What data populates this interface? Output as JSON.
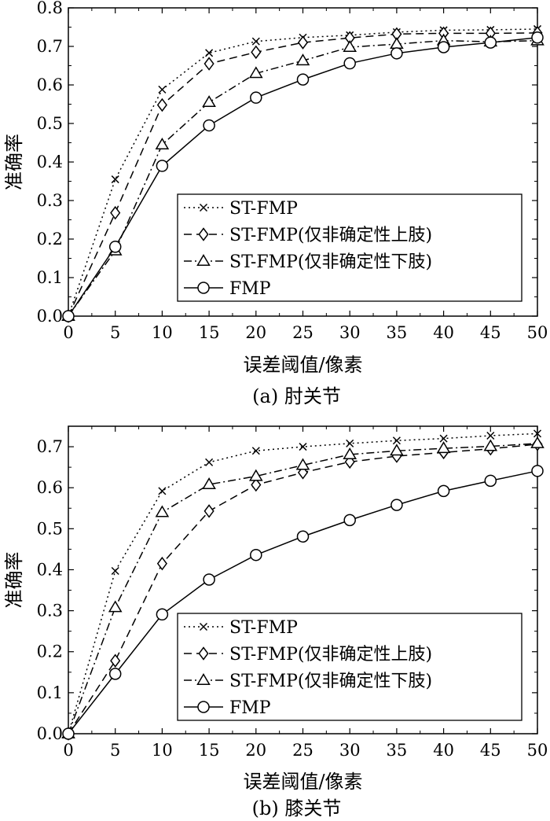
{
  "chart_data": [
    {
      "type": "line",
      "caption": "(a) 肘关节",
      "xlabel": "误差阈值/像素",
      "ylabel": "准确率",
      "xlim": [
        0,
        50
      ],
      "ylim": [
        0,
        0.8
      ],
      "xticks": [
        0,
        5,
        10,
        15,
        20,
        25,
        30,
        35,
        40,
        45,
        50
      ],
      "yticks": [
        0.0,
        0.1,
        0.2,
        0.3,
        0.4,
        0.5,
        0.6,
        0.7,
        0.8
      ],
      "ytick_labels": [
        "0.0",
        "0.1",
        "0.2",
        "0.3",
        "0.4",
        "0.5",
        "0.6",
        "0.7",
        "0.8"
      ],
      "grid": false,
      "legend_position": "bottom-right",
      "x": [
        0,
        5,
        10,
        15,
        20,
        25,
        30,
        35,
        40,
        45,
        50
      ],
      "series": [
        {
          "name": "ST-FMP",
          "marker": "x",
          "line_style": "dotted",
          "values": [
            0.0,
            0.355,
            0.588,
            0.683,
            0.713,
            0.723,
            0.729,
            0.737,
            0.742,
            0.743,
            0.745
          ]
        },
        {
          "name": "ST-FMP(仅非确定性上肢)",
          "marker": "diamond",
          "line_style": "dashed",
          "values": [
            0.0,
            0.268,
            0.548,
            0.655,
            0.685,
            0.71,
            0.722,
            0.732,
            0.734,
            0.734,
            0.735
          ]
        },
        {
          "name": "ST-FMP(仅非确定性下肢)",
          "marker": "triangle",
          "line_style": "dashdot",
          "values": [
            0.0,
            0.17,
            0.445,
            0.555,
            0.63,
            0.663,
            0.698,
            0.706,
            0.715,
            0.712,
            0.715
          ]
        },
        {
          "name": "FMP",
          "marker": "circle",
          "line_style": "solid",
          "values": [
            0.0,
            0.18,
            0.39,
            0.495,
            0.567,
            0.614,
            0.656,
            0.682,
            0.698,
            0.71,
            0.723
          ]
        }
      ]
    },
    {
      "type": "line",
      "caption": "(b) 膝关节",
      "xlabel": "误差阈值/像素",
      "ylabel": "准确率",
      "xlim": [
        0,
        50
      ],
      "ylim": [
        0,
        0.75
      ],
      "xticks": [
        0,
        5,
        10,
        15,
        20,
        25,
        30,
        35,
        40,
        45,
        50
      ],
      "yticks": [
        0.0,
        0.1,
        0.2,
        0.3,
        0.4,
        0.5,
        0.6,
        0.7
      ],
      "ytick_labels": [
        "0.0",
        "0.1",
        "0.2",
        "0.3",
        "0.4",
        "0.5",
        "0.6",
        "0.7"
      ],
      "grid": false,
      "legend_position": "bottom-right",
      "x": [
        0,
        5,
        10,
        15,
        20,
        25,
        30,
        35,
        40,
        45,
        50
      ],
      "series": [
        {
          "name": "ST-FMP",
          "marker": "x",
          "line_style": "dotted",
          "values": [
            0.0,
            0.397,
            0.592,
            0.662,
            0.69,
            0.7,
            0.708,
            0.715,
            0.72,
            0.727,
            0.732
          ]
        },
        {
          "name": "ST-FMP(仅非确定性上肢)",
          "marker": "diamond",
          "line_style": "dashed",
          "values": [
            0.0,
            0.178,
            0.415,
            0.543,
            0.607,
            0.637,
            0.663,
            0.677,
            0.686,
            0.695,
            0.706
          ]
        },
        {
          "name": "ST-FMP(仅非确定性下肢)",
          "marker": "triangle",
          "line_style": "dashdot",
          "values": [
            0.0,
            0.308,
            0.54,
            0.608,
            0.628,
            0.655,
            0.681,
            0.69,
            0.696,
            0.701,
            0.708
          ]
        },
        {
          "name": "FMP",
          "marker": "circle",
          "line_style": "solid",
          "values": [
            0.0,
            0.146,
            0.291,
            0.376,
            0.436,
            0.481,
            0.521,
            0.558,
            0.592,
            0.617,
            0.641
          ]
        }
      ]
    }
  ]
}
